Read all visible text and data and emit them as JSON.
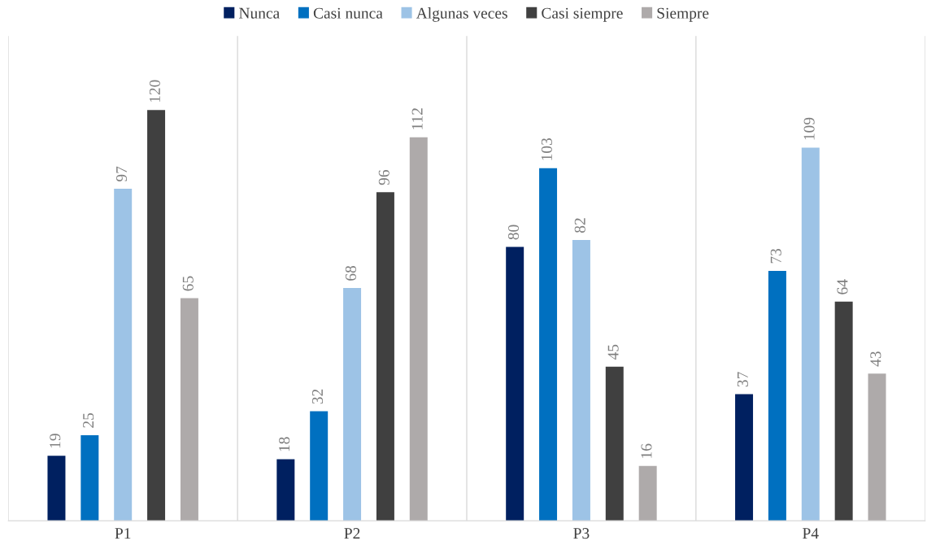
{
  "chart_data": {
    "type": "bar",
    "categories": [
      "P1",
      "P2",
      "P3",
      "P4"
    ],
    "series": [
      {
        "name": "Nunca",
        "color": "#002060",
        "values": [
          19,
          18,
          80,
          37
        ]
      },
      {
        "name": "Casi nunca",
        "color": "#0070c0",
        "values": [
          25,
          32,
          103,
          73
        ]
      },
      {
        "name": "Algunas veces",
        "color": "#9dc3e6",
        "values": [
          97,
          68,
          82,
          109
        ]
      },
      {
        "name": "Casi siempre",
        "color": "#404040",
        "values": [
          120,
          96,
          45,
          64
        ]
      },
      {
        "name": "Siempre",
        "color": "#aeaaaa",
        "values": [
          65,
          112,
          16,
          43
        ]
      }
    ],
    "data_labels": true,
    "grid": "x",
    "legend": "top",
    "tick_labels": "x"
  }
}
